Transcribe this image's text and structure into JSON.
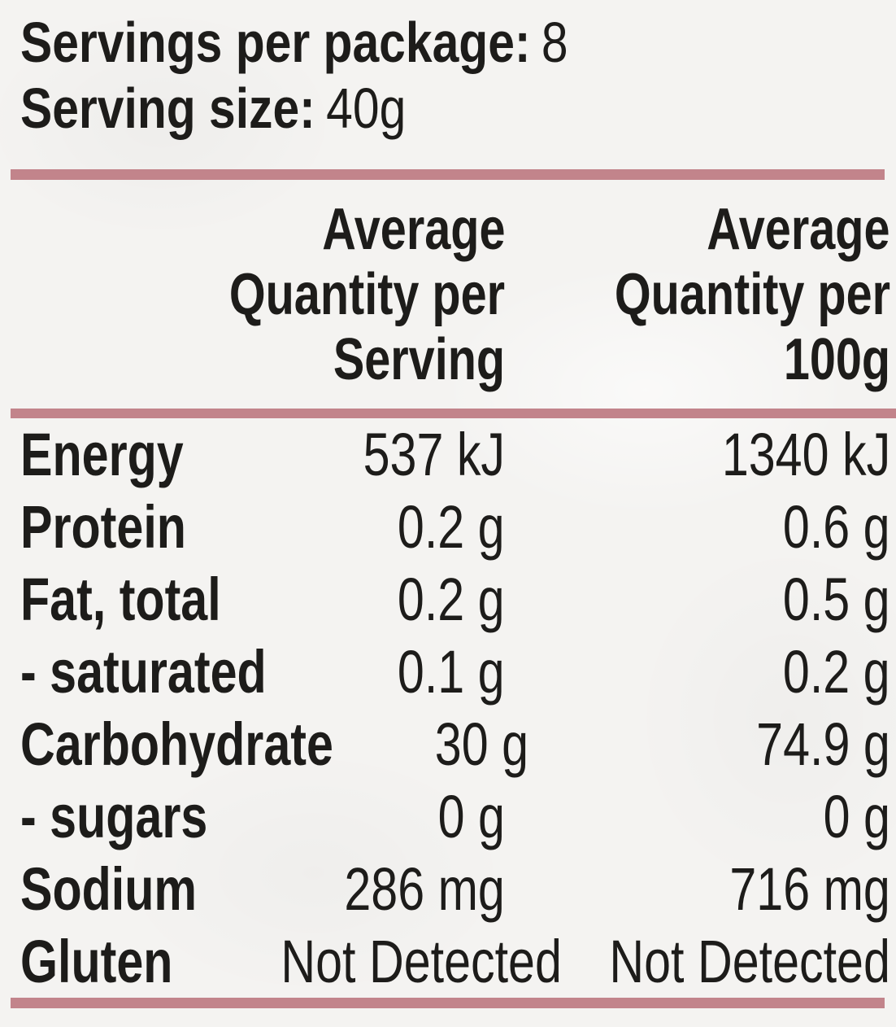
{
  "title": {
    "servings_label": "Servings per package:",
    "servings_value": "8",
    "serving_size_label": "Serving size:",
    "serving_size_value": "40g"
  },
  "table": {
    "col_serving_header": [
      "Average",
      "Quantity per",
      "Serving"
    ],
    "col_100g_header": [
      "Average",
      "Quantity per",
      "100g"
    ],
    "rows": [
      {
        "nutrient": "Energy",
        "per_serving": "537 kJ",
        "per_100g": "1340 kJ"
      },
      {
        "nutrient": "Protein",
        "per_serving": "0.2 g",
        "per_100g": "0.6 g"
      },
      {
        "nutrient": "Fat, total",
        "per_serving": "0.2 g",
        "per_100g": "0.5 g"
      },
      {
        "nutrient": "- saturated",
        "per_serving": "0.1 g",
        "per_100g": "0.2 g"
      },
      {
        "nutrient": "Carbohydrate",
        "per_serving": "30 g",
        "per_100g": "74.9 g"
      },
      {
        "nutrient": "- sugars",
        "per_serving": "0 g",
        "per_100g": "0 g"
      },
      {
        "nutrient": "Sodium",
        "per_serving": "286 mg",
        "per_100g": "716 mg"
      },
      {
        "nutrient": "Gluten",
        "per_serving": "Not Detected",
        "per_100g": "Not Detected"
      }
    ]
  },
  "colors": {
    "accent_rose": "#c2848b",
    "background": "#f4f3f1",
    "text": "#1d1c1a"
  }
}
